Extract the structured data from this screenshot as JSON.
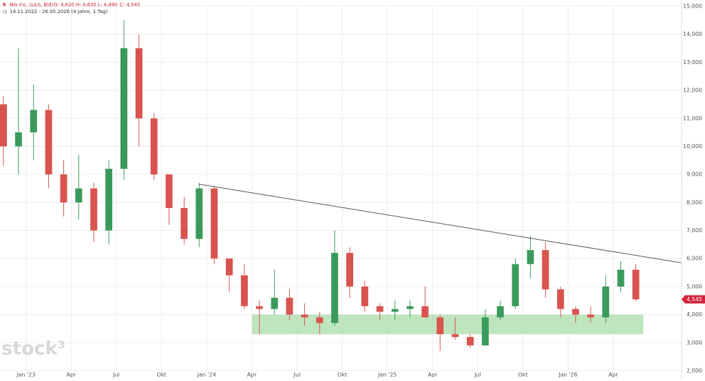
{
  "chart_data": {
    "type": "candlestick",
    "symbol": "Nio Inc. (L&S, Bid)",
    "ohlc_text": [
      "O: 4,620",
      "H: 4,635",
      "L: 4,490",
      "C: 4,545"
    ],
    "range_text": "14.11.2022 - 26.05.2026 (4 Jahre, 1 Tag)",
    "watermark": "stock³",
    "categories": [
      "2022-11",
      "2022-12",
      "2023-01",
      "2023-02",
      "2023-03",
      "2023-04",
      "2023-05",
      "2023-06",
      "2023-07",
      "2023-08",
      "2023-09",
      "2023-10",
      "2023-11",
      "2023-12",
      "2024-01",
      "2024-02",
      "2024-03",
      "2024-04",
      "2024-05",
      "2024-06",
      "2024-07",
      "2024-08",
      "2024-09",
      "2024-10",
      "2024-11",
      "2024-12",
      "2025-01",
      "2025-02",
      "2025-03",
      "2025-04",
      "2025-05",
      "2025-06",
      "2025-07",
      "2025-08",
      "2025-09",
      "2025-10",
      "2025-11",
      "2025-12",
      "2026-01",
      "2026-02",
      "2026-03",
      "2026-04",
      "2026-05"
    ],
    "open": [
      11.5,
      10,
      10.5,
      11.3,
      9,
      8,
      8.5,
      7,
      9.2,
      13.5,
      11,
      9,
      7.8,
      6.7,
      8.5,
      6,
      5.4,
      4.3,
      4.2,
      4.6,
      4,
      3.9,
      3.7,
      6.2,
      5,
      4.3,
      4.1,
      4.2,
      4.3,
      3.9,
      3.3,
      3.2,
      2.9,
      3.9,
      4.3,
      5.8,
      6.3,
      4.9,
      4.2,
      4,
      3.9,
      5,
      5.6
    ],
    "high": [
      11.8,
      13.5,
      12.2,
      11.5,
      9.5,
      9.7,
      8.7,
      9.5,
      14.5,
      14,
      11.2,
      9,
      8.2,
      8.7,
      8.6,
      6,
      5.8,
      4.5,
      5.6,
      4.9,
      4.4,
      4.1,
      7,
      6.4,
      5.2,
      4.4,
      4.5,
      4.5,
      5,
      4,
      3.9,
      3.3,
      4.2,
      4.5,
      6,
      6.8,
      6.6,
      5,
      4.3,
      4.3,
      5.4,
      5.9,
      5.8
    ],
    "low": [
      9.3,
      9,
      9.5,
      8.5,
      7.5,
      7.4,
      6.6,
      6.5,
      8.8,
      10,
      8.8,
      7.2,
      6.5,
      6.4,
      5.8,
      4.8,
      4.2,
      3.3,
      4,
      3.8,
      3.6,
      3.3,
      3.6,
      4.6,
      4.1,
      3.8,
      3.8,
      3.9,
      3.9,
      2.7,
      3.1,
      2.8,
      2.9,
      3.8,
      4.2,
      5.3,
      4.6,
      3.9,
      3.7,
      3.7,
      3.7,
      4.8,
      4.49
    ],
    "close": [
      10,
      10.5,
      11.3,
      9,
      8,
      8.5,
      7,
      9.2,
      13.5,
      11,
      9,
      7.8,
      6.7,
      8.5,
      6,
      5.4,
      4.3,
      4.2,
      4.6,
      4,
      3.9,
      3.7,
      6.2,
      5,
      4.3,
      4.1,
      4.2,
      4.3,
      3.9,
      3.3,
      3.2,
      2.9,
      3.9,
      4.3,
      5.8,
      6.3,
      4.9,
      4.2,
      4,
      3.9,
      5,
      5.6,
      4.545
    ],
    "up_color": "#3a9a5b",
    "down_color": "#d9534f",
    "last_price": {
      "value": 4.545,
      "label": "4,545",
      "color": "#d0243a"
    },
    "trendline": {
      "x": [
        "2023-12",
        "2026-08"
      ],
      "y": [
        8.65,
        5.85
      ],
      "color": "#555555"
    },
    "zone": {
      "x": [
        "2024-04",
        "2026-06"
      ],
      "y": [
        3.3,
        4.0
      ],
      "color": "#a8dca8"
    },
    "ylim": [
      2,
      15
    ],
    "yticks": [
      {
        "value": 2,
        "label": "2,000"
      },
      {
        "value": 3,
        "label": "3,000"
      },
      {
        "value": 4,
        "label": "4,000"
      },
      {
        "value": 5,
        "label": "5,000"
      },
      {
        "value": 6,
        "label": "6,000"
      },
      {
        "value": 7,
        "label": "7,000"
      },
      {
        "value": 8,
        "label": "8,000"
      },
      {
        "value": 9,
        "label": "9,000"
      },
      {
        "value": 10,
        "label": "10,000"
      },
      {
        "value": 11,
        "label": "11,000"
      },
      {
        "value": 12,
        "label": "12,000"
      },
      {
        "value": 13,
        "label": "13,000"
      },
      {
        "value": 14,
        "label": "14,000"
      },
      {
        "value": 15,
        "label": "15,000"
      }
    ],
    "xticks": [
      {
        "value": "2023-01",
        "label": "Jan '23"
      },
      {
        "value": "2023-04",
        "label": "Apr"
      },
      {
        "value": "2023-07",
        "label": "Jul"
      },
      {
        "value": "2023-10",
        "label": "Okt"
      },
      {
        "value": "2024-01",
        "label": "Jan '24"
      },
      {
        "value": "2024-04",
        "label": "Apr"
      },
      {
        "value": "2024-07",
        "label": "Jul"
      },
      {
        "value": "2024-10",
        "label": "Okt"
      },
      {
        "value": "2025-01",
        "label": "Jan '25"
      },
      {
        "value": "2025-04",
        "label": "Apr"
      },
      {
        "value": "2025-07",
        "label": "Jul"
      },
      {
        "value": "2025-10",
        "label": "Okt"
      },
      {
        "value": "2026-01",
        "label": "Jan '26"
      },
      {
        "value": "2026-04",
        "label": "Apr"
      }
    ],
    "grid": true
  }
}
